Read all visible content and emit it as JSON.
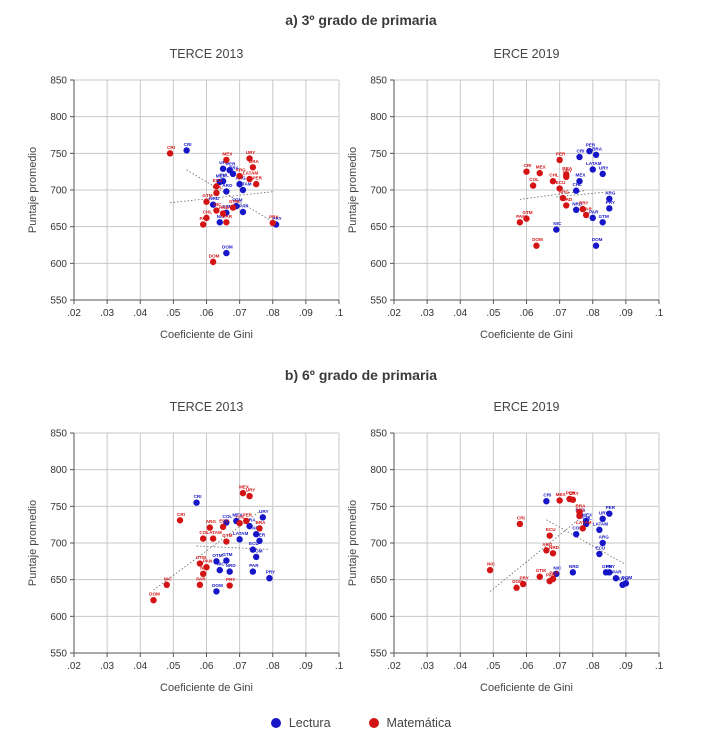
{
  "colors": {
    "lectura": "#1616c8",
    "matematica": "#d41414",
    "grid": "#c8c8c8",
    "axis": "#555555"
  },
  "sections": {
    "a_title": "a) 3º grado de primaria",
    "b_title": "b) 6º grado de primaria"
  },
  "legend": {
    "lectura": "Lectura",
    "matematica": "Matemática"
  },
  "chart_data": [
    {
      "type": "scatter",
      "section": "a",
      "title": "TERCE 2013",
      "xlabel": "Coeficiente de Gini",
      "ylabel": "Puntaje promedio",
      "xlim": [
        0.02,
        0.1
      ],
      "ylim": [
        550,
        850
      ],
      "xticks": [
        ".02",
        ".03",
        ".04",
        ".05",
        ".06",
        ".07",
        ".08",
        ".09",
        ".1"
      ],
      "yticks": [
        "550",
        "600",
        "650",
        "700",
        "750",
        "800",
        "850"
      ],
      "grid": true,
      "series": [
        {
          "name": "Lectura",
          "color": "#1616c8",
          "points": [
            {
              "x": 0.054,
              "y": 754,
              "label": "CRI"
            },
            {
              "x": 0.065,
              "y": 729,
              "label": "URY"
            },
            {
              "x": 0.067,
              "y": 727,
              "label": "PER"
            },
            {
              "x": 0.068,
              "y": 722,
              "label": "BRA"
            },
            {
              "x": 0.065,
              "y": 712,
              "label": "CHL"
            },
            {
              "x": 0.064,
              "y": 711,
              "label": "MEX"
            },
            {
              "x": 0.07,
              "y": 708,
              "label": "ARG"
            },
            {
              "x": 0.066,
              "y": 698,
              "label": "ARO"
            },
            {
              "x": 0.071,
              "y": 700,
              "label": "LATAM"
            },
            {
              "x": 0.062,
              "y": 680,
              "label": "NRD"
            },
            {
              "x": 0.069,
              "y": 678,
              "label": "OTM"
            },
            {
              "x": 0.071,
              "y": 670,
              "label": "PAR"
            },
            {
              "x": 0.066,
              "y": 669,
              "label": "GTM"
            },
            {
              "x": 0.064,
              "y": 656,
              "label": "NIC"
            },
            {
              "x": 0.081,
              "y": 653,
              "label": "PRY"
            },
            {
              "x": 0.066,
              "y": 614,
              "label": "DOM"
            }
          ]
        },
        {
          "name": "Matemática",
          "color": "#d41414",
          "points": [
            {
              "x": 0.049,
              "y": 750,
              "label": "CRI"
            },
            {
              "x": 0.066,
              "y": 741,
              "label": "MEX"
            },
            {
              "x": 0.073,
              "y": 743,
              "label": "URY"
            },
            {
              "x": 0.074,
              "y": 731,
              "label": "BRA"
            },
            {
              "x": 0.07,
              "y": 719,
              "label": "ARG"
            },
            {
              "x": 0.073,
              "y": 715,
              "label": "LATAM"
            },
            {
              "x": 0.075,
              "y": 708,
              "label": "PER"
            },
            {
              "x": 0.063,
              "y": 705,
              "label": "ECU"
            },
            {
              "x": 0.063,
              "y": 696,
              "label": "COL"
            },
            {
              "x": 0.06,
              "y": 684,
              "label": "GTM"
            },
            {
              "x": 0.063,
              "y": 672,
              "label": "NIC"
            },
            {
              "x": 0.068,
              "y": 676,
              "label": "GTM"
            },
            {
              "x": 0.065,
              "y": 668,
              "label": "HND"
            },
            {
              "x": 0.06,
              "y": 662,
              "label": "CHL"
            },
            {
              "x": 0.059,
              "y": 653,
              "label": "PAN"
            },
            {
              "x": 0.066,
              "y": 656,
              "label": "PAR"
            },
            {
              "x": 0.08,
              "y": 655,
              "label": "PRY"
            },
            {
              "x": 0.062,
              "y": 602,
              "label": "DOM"
            }
          ]
        }
      ]
    },
    {
      "type": "scatter",
      "section": "a",
      "title": "ERCE 2019",
      "xlabel": "Coeficiente de Gini",
      "ylabel": "Puntaje promedio",
      "xlim": [
        0.02,
        0.1
      ],
      "ylim": [
        550,
        850
      ],
      "xticks": [
        ".02",
        ".03",
        ".04",
        ".05",
        ".06",
        ".07",
        ".08",
        ".09",
        ".1"
      ],
      "yticks": [
        "550",
        "600",
        "650",
        "700",
        "750",
        "800",
        "850"
      ],
      "grid": true,
      "series": [
        {
          "name": "Lectura",
          "color": "#1616c8",
          "points": [
            {
              "x": 0.079,
              "y": 753,
              "label": "PER"
            },
            {
              "x": 0.081,
              "y": 748,
              "label": "BRA"
            },
            {
              "x": 0.076,
              "y": 745,
              "label": "CRI"
            },
            {
              "x": 0.083,
              "y": 722,
              "label": "URY"
            },
            {
              "x": 0.08,
              "y": 728,
              "label": "LATAM"
            },
            {
              "x": 0.076,
              "y": 712,
              "label": "MEX"
            },
            {
              "x": 0.075,
              "y": 699,
              "label": "CHL"
            },
            {
              "x": 0.085,
              "y": 688,
              "label": "ARG"
            },
            {
              "x": 0.085,
              "y": 675,
              "label": "PRY"
            },
            {
              "x": 0.075,
              "y": 673,
              "label": "NRD"
            },
            {
              "x": 0.08,
              "y": 662,
              "label": "PAR"
            },
            {
              "x": 0.083,
              "y": 656,
              "label": "GTM"
            },
            {
              "x": 0.069,
              "y": 646,
              "label": "NIC"
            },
            {
              "x": 0.081,
              "y": 624,
              "label": "DOM"
            }
          ]
        },
        {
          "name": "Matemática",
          "color": "#d41414",
          "points": [
            {
              "x": 0.07,
              "y": 741,
              "label": "PER"
            },
            {
              "x": 0.06,
              "y": 725,
              "label": "CRI"
            },
            {
              "x": 0.064,
              "y": 723,
              "label": "MEX"
            },
            {
              "x": 0.072,
              "y": 718,
              "label": "URY"
            },
            {
              "x": 0.072,
              "y": 721,
              "label": "BRA"
            },
            {
              "x": 0.068,
              "y": 712,
              "label": "CHL"
            },
            {
              "x": 0.07,
              "y": 702,
              "label": "ECU"
            },
            {
              "x": 0.062,
              "y": 706,
              "label": "COL"
            },
            {
              "x": 0.071,
              "y": 689,
              "label": "ARG"
            },
            {
              "x": 0.072,
              "y": 679,
              "label": "NRD"
            },
            {
              "x": 0.077,
              "y": 674,
              "label": "PRY"
            },
            {
              "x": 0.078,
              "y": 666,
              "label": "PAR"
            },
            {
              "x": 0.06,
              "y": 661,
              "label": "GTM"
            },
            {
              "x": 0.058,
              "y": 656,
              "label": "PAN"
            },
            {
              "x": 0.063,
              "y": 624,
              "label": "DOM"
            }
          ]
        }
      ]
    },
    {
      "type": "scatter",
      "section": "b",
      "title": "TERCE 2013",
      "xlabel": "Coeficiente de Gini",
      "ylabel": "Puntaje promedio",
      "xlim": [
        0.02,
        0.1
      ],
      "ylim": [
        550,
        850
      ],
      "xticks": [
        ".02",
        ".03",
        ".04",
        ".05",
        ".06",
        ".07",
        ".08",
        ".09",
        ".1"
      ],
      "yticks": [
        "550",
        "600",
        "650",
        "700",
        "750",
        "800",
        "850"
      ],
      "grid": true,
      "series": [
        {
          "name": "Lectura",
          "color": "#1616c8",
          "points": [
            {
              "x": 0.057,
              "y": 755,
              "label": "CRI"
            },
            {
              "x": 0.077,
              "y": 735,
              "label": "URY"
            },
            {
              "x": 0.066,
              "y": 728,
              "label": "COL"
            },
            {
              "x": 0.069,
              "y": 730,
              "label": "MEX"
            },
            {
              "x": 0.073,
              "y": 723,
              "label": "BRA"
            },
            {
              "x": 0.075,
              "y": 712,
              "label": "ARG"
            },
            {
              "x": 0.076,
              "y": 703,
              "label": "PER"
            },
            {
              "x": 0.07,
              "y": 705,
              "label": "LATAM"
            },
            {
              "x": 0.074,
              "y": 691,
              "label": "ECU"
            },
            {
              "x": 0.075,
              "y": 681,
              "label": "DOM"
            },
            {
              "x": 0.063,
              "y": 675,
              "label": "OTM"
            },
            {
              "x": 0.066,
              "y": 676,
              "label": "GTM"
            },
            {
              "x": 0.064,
              "y": 663,
              "label": "NIC"
            },
            {
              "x": 0.067,
              "y": 661,
              "label": "NRD"
            },
            {
              "x": 0.074,
              "y": 661,
              "label": "PAR"
            },
            {
              "x": 0.079,
              "y": 652,
              "label": "PRY"
            },
            {
              "x": 0.063,
              "y": 634,
              "label": "DOM"
            }
          ]
        },
        {
          "name": "Matemática",
          "color": "#d41414",
          "points": [
            {
              "x": 0.071,
              "y": 768,
              "label": "MEX"
            },
            {
              "x": 0.073,
              "y": 764,
              "label": "URY"
            },
            {
              "x": 0.052,
              "y": 731,
              "label": "CRI"
            },
            {
              "x": 0.072,
              "y": 730,
              "label": "PER"
            },
            {
              "x": 0.07,
              "y": 727,
              "label": "CHL"
            },
            {
              "x": 0.065,
              "y": 722,
              "label": "ECU"
            },
            {
              "x": 0.061,
              "y": 721,
              "label": "ARG"
            },
            {
              "x": 0.076,
              "y": 720,
              "label": "BRA"
            },
            {
              "x": 0.059,
              "y": 706,
              "label": "COL"
            },
            {
              "x": 0.062,
              "y": 706,
              "label": "LATAM"
            },
            {
              "x": 0.066,
              "y": 702,
              "label": "GTM"
            },
            {
              "x": 0.058,
              "y": 672,
              "label": "OTM"
            },
            {
              "x": 0.06,
              "y": 667,
              "label": "PAN"
            },
            {
              "x": 0.059,
              "y": 658,
              "label": "NIC"
            },
            {
              "x": 0.048,
              "y": 643,
              "label": "NIC"
            },
            {
              "x": 0.058,
              "y": 643,
              "label": "PAR"
            },
            {
              "x": 0.067,
              "y": 642,
              "label": "PRY"
            },
            {
              "x": 0.044,
              "y": 622,
              "label": "DOM"
            }
          ]
        }
      ]
    },
    {
      "type": "scatter",
      "section": "b",
      "title": "ERCE 2019",
      "xlabel": "Coeficiente de Gini",
      "ylabel": "Puntaje promedio",
      "xlim": [
        0.02,
        0.1
      ],
      "ylim": [
        550,
        850
      ],
      "xticks": [
        ".02",
        ".03",
        ".04",
        ".05",
        ".06",
        ".07",
        ".08",
        ".09",
        ".1"
      ],
      "yticks": [
        "550",
        "600",
        "650",
        "700",
        "750",
        "800",
        "850"
      ],
      "grid": true,
      "series": [
        {
          "name": "Lectura",
          "color": "#1616c8",
          "points": [
            {
              "x": 0.066,
              "y": 757,
              "label": "CRI"
            },
            {
              "x": 0.085,
              "y": 740,
              "label": "PER"
            },
            {
              "x": 0.083,
              "y": 733,
              "label": "URY"
            },
            {
              "x": 0.076,
              "y": 737,
              "label": "BRA"
            },
            {
              "x": 0.078,
              "y": 730,
              "label": "MEX"
            },
            {
              "x": 0.078,
              "y": 726,
              "label": "CHL"
            },
            {
              "x": 0.082,
              "y": 718,
              "label": "LATAM"
            },
            {
              "x": 0.083,
              "y": 700,
              "label": "ARG"
            },
            {
              "x": 0.082,
              "y": 685,
              "label": "ECU"
            },
            {
              "x": 0.075,
              "y": 712,
              "label": "COL"
            },
            {
              "x": 0.085,
              "y": 660,
              "label": "PRY"
            },
            {
              "x": 0.087,
              "y": 652,
              "label": "PAR"
            },
            {
              "x": 0.084,
              "y": 660,
              "label": "GTM"
            },
            {
              "x": 0.09,
              "y": 645,
              "label": "DOM"
            },
            {
              "x": 0.089,
              "y": 643,
              "label": "OTM"
            },
            {
              "x": 0.074,
              "y": 660,
              "label": "NRD"
            },
            {
              "x": 0.069,
              "y": 658,
              "label": "NIC"
            }
          ]
        },
        {
          "name": "Matemática",
          "color": "#d41414",
          "points": [
            {
              "x": 0.07,
              "y": 758,
              "label": "MEX"
            },
            {
              "x": 0.073,
              "y": 760,
              "label": "PER"
            },
            {
              "x": 0.074,
              "y": 759,
              "label": "URY"
            },
            {
              "x": 0.076,
              "y": 742,
              "label": "BRA"
            },
            {
              "x": 0.076,
              "y": 737,
              "label": "CHL"
            },
            {
              "x": 0.058,
              "y": 726,
              "label": "CRI"
            },
            {
              "x": 0.077,
              "y": 720,
              "label": "LATAM"
            },
            {
              "x": 0.067,
              "y": 710,
              "label": "ECU"
            },
            {
              "x": 0.066,
              "y": 690,
              "label": "ARG"
            },
            {
              "x": 0.068,
              "y": 686,
              "label": "NRD"
            },
            {
              "x": 0.049,
              "y": 663,
              "label": "NIC"
            },
            {
              "x": 0.068,
              "y": 651,
              "label": "PAR"
            },
            {
              "x": 0.059,
              "y": 644,
              "label": "PRY"
            },
            {
              "x": 0.057,
              "y": 639,
              "label": "DOM"
            },
            {
              "x": 0.064,
              "y": 654,
              "label": "GTM"
            },
            {
              "x": 0.067,
              "y": 648,
              "label": "PAN"
            }
          ]
        }
      ]
    }
  ]
}
